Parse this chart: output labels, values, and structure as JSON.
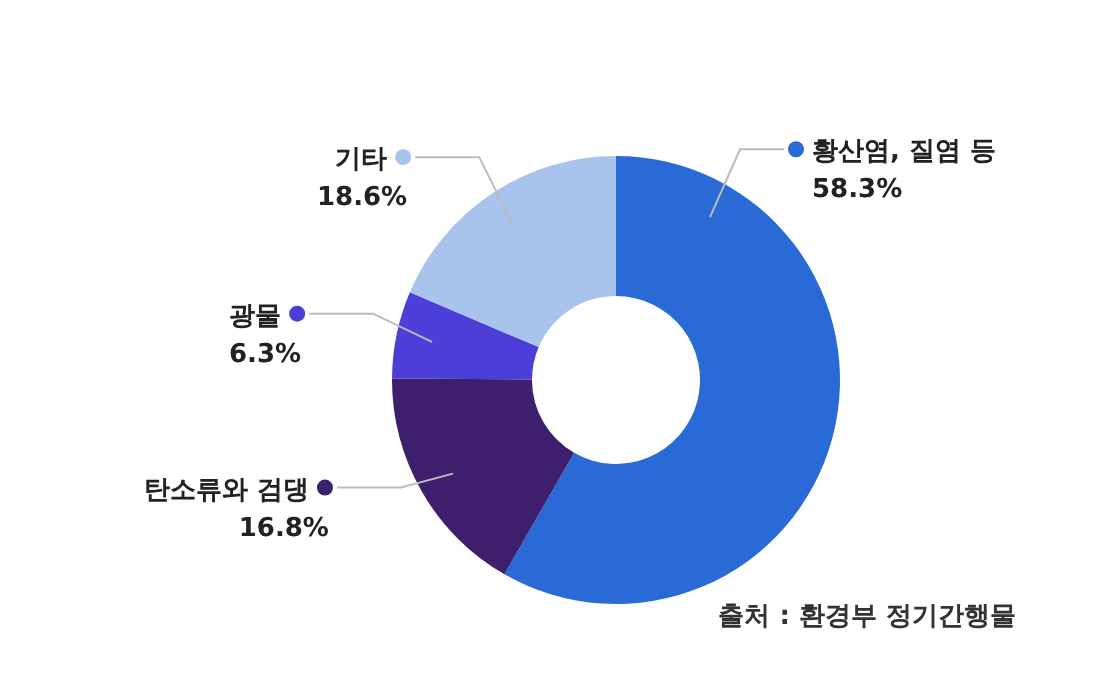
{
  "chart_data": {
    "type": "donut",
    "categories": [
      "황산염, 질염 등",
      "탄소류와 검댕",
      "광물",
      "기타"
    ],
    "values": [
      58.3,
      16.8,
      6.3,
      18.6
    ],
    "value_labels": [
      "58.3%",
      "16.8%",
      "6.3%",
      "18.6%"
    ],
    "legend": "left",
    "colors": [
      "#2a6ad6",
      "#3d1f6e",
      "#4b3fd8",
      "#a8c3ec"
    ],
    "annotations": [
      "출처 : 환경부 정기간행물"
    ]
  }
}
